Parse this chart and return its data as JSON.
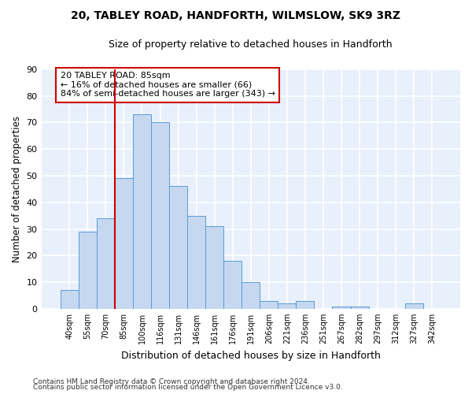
{
  "title": "20, TABLEY ROAD, HANDFORTH, WILMSLOW, SK9 3RZ",
  "subtitle": "Size of property relative to detached houses in Handforth",
  "xlabel": "Distribution of detached houses by size in Handforth",
  "ylabel": "Number of detached properties",
  "bar_color": "#c5d8f0",
  "bar_edge_color": "#5b9bd5",
  "categories": [
    "40sqm",
    "55sqm",
    "70sqm",
    "85sqm",
    "100sqm",
    "116sqm",
    "131sqm",
    "146sqm",
    "161sqm",
    "176sqm",
    "191sqm",
    "206sqm",
    "221sqm",
    "236sqm",
    "251sqm",
    "267sqm",
    "282sqm",
    "297sqm",
    "312sqm",
    "327sqm",
    "342sqm"
  ],
  "values": [
    7,
    29,
    34,
    49,
    73,
    70,
    46,
    35,
    31,
    18,
    10,
    3,
    2,
    3,
    0,
    1,
    1,
    0,
    0,
    2,
    0
  ],
  "ylim": [
    0,
    90
  ],
  "yticks": [
    0,
    10,
    20,
    30,
    40,
    50,
    60,
    70,
    80,
    90
  ],
  "vline_index": 3,
  "vline_color": "#cc0000",
  "annotation_text": "20 TABLEY ROAD: 85sqm\n← 16% of detached houses are smaller (66)\n84% of semi-detached houses are larger (343) →",
  "annotation_box_color": "#ffffff",
  "annotation_box_edge": "#cc0000",
  "footer_line1": "Contains HM Land Registry data © Crown copyright and database right 2024.",
  "footer_line2": "Contains public sector information licensed under the Open Government Licence v3.0.",
  "background_color": "#e8f0fb",
  "grid_color": "#ffffff",
  "fig_bg": "#ffffff"
}
